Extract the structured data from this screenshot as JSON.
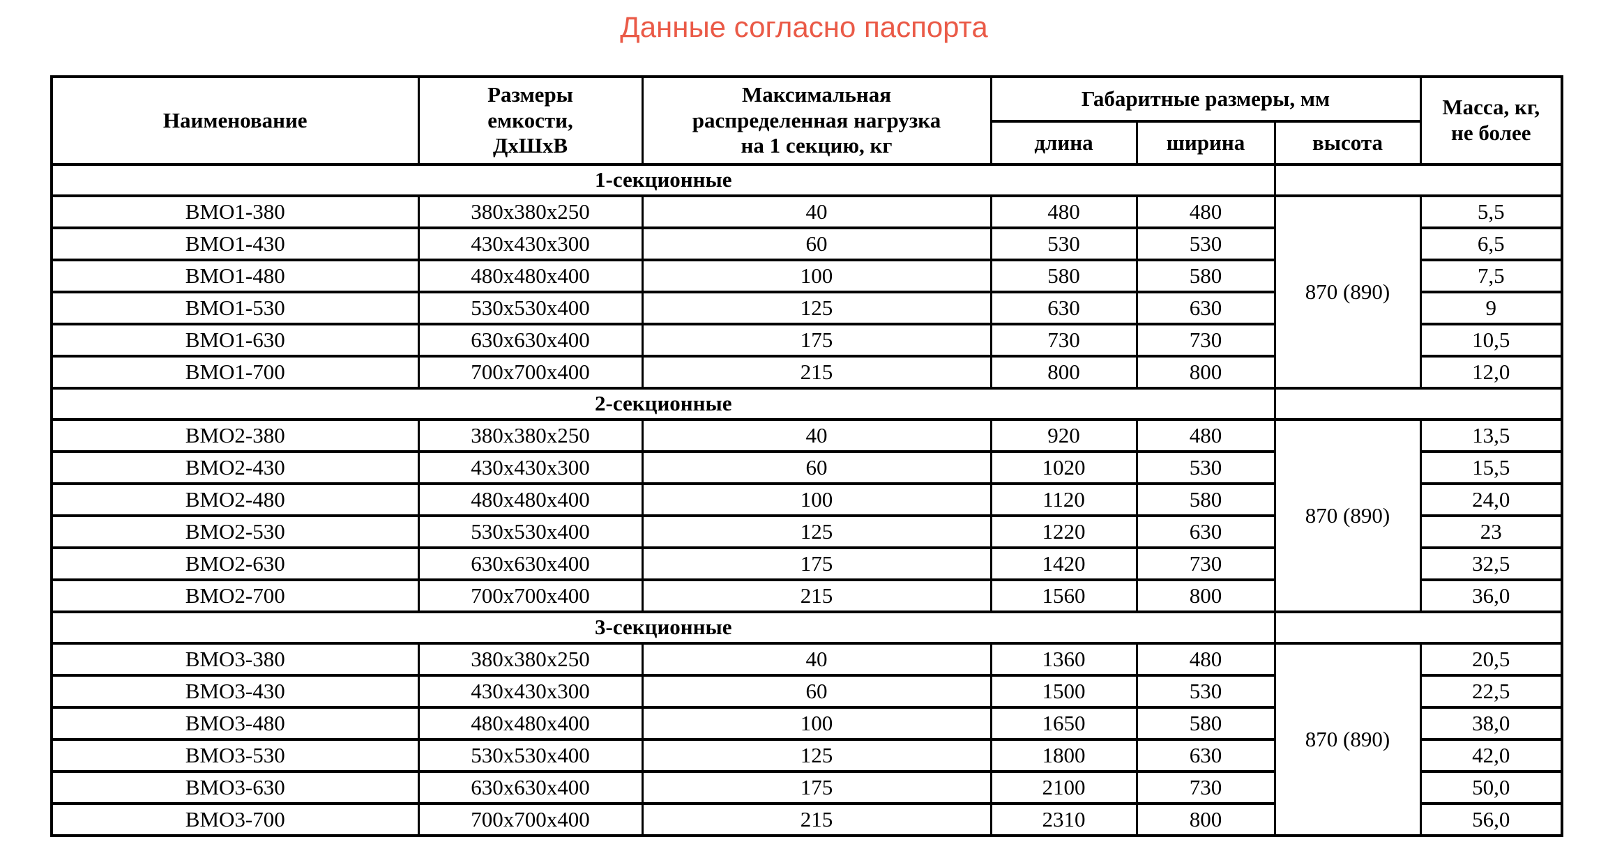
{
  "title": "Данные согласно паспорта",
  "accent_color": "#ea5a47",
  "table": {
    "header": {
      "name": "Наименование",
      "container_size": "Размеры\nемкости,\nДхШхВ",
      "max_load": "Максимальная\nраспределенная нагрузка\nна 1 секцию, кг",
      "overall_dims": "Габаритные размеры, мм",
      "length": "длина",
      "width": "ширина",
      "height": "высота",
      "mass": "Масса, кг,\nне более"
    },
    "sections": [
      {
        "label": "1-секционные",
        "height_value": "870 (890)",
        "rows": [
          {
            "name": "ВМО1-380",
            "size": "380х380х250",
            "load": "40",
            "length": "480",
            "width": "480",
            "mass": "5,5"
          },
          {
            "name": "ВМО1-430",
            "size": "430х430х300",
            "load": "60",
            "length": "530",
            "width": "530",
            "mass": "6,5"
          },
          {
            "name": "ВМО1-480",
            "size": "480х480х400",
            "load": "100",
            "length": "580",
            "width": "580",
            "mass": "7,5"
          },
          {
            "name": "ВМО1-530",
            "size": "530х530х400",
            "load": "125",
            "length": "630",
            "width": "630",
            "mass": "9"
          },
          {
            "name": "ВМО1-630",
            "size": "630х630х400",
            "load": "175",
            "length": "730",
            "width": "730",
            "mass": "10,5"
          },
          {
            "name": "ВМО1-700",
            "size": "700х700х400",
            "load": "215",
            "length": "800",
            "width": "800",
            "mass": "12,0"
          }
        ]
      },
      {
        "label": "2-секционные",
        "height_value": "870 (890)",
        "rows": [
          {
            "name": "ВМО2-380",
            "size": "380х380х250",
            "load": "40",
            "length": "920",
            "width": "480",
            "mass": "13,5"
          },
          {
            "name": "ВМО2-430",
            "size": "430х430х300",
            "load": "60",
            "length": "1020",
            "width": "530",
            "mass": "15,5"
          },
          {
            "name": "ВМО2-480",
            "size": "480х480х400",
            "load": "100",
            "length": "1120",
            "width": "580",
            "mass": "24,0"
          },
          {
            "name": "ВМО2-530",
            "size": "530х530х400",
            "load": "125",
            "length": "1220",
            "width": "630",
            "mass": "23"
          },
          {
            "name": "ВМО2-630",
            "size": "630х630х400",
            "load": "175",
            "length": "1420",
            "width": "730",
            "mass": "32,5"
          },
          {
            "name": "ВМО2-700",
            "size": "700х700х400",
            "load": "215",
            "length": "1560",
            "width": "800",
            "mass": "36,0"
          }
        ]
      },
      {
        "label": "3-секционные",
        "height_value": "870 (890)",
        "rows": [
          {
            "name": "ВМО3-380",
            "size": "380х380х250",
            "load": "40",
            "length": "1360",
            "width": "480",
            "mass": "20,5"
          },
          {
            "name": "ВМО3-430",
            "size": "430х430х300",
            "load": "60",
            "length": "1500",
            "width": "530",
            "mass": "22,5"
          },
          {
            "name": "ВМО3-480",
            "size": "480х480х400",
            "load": "100",
            "length": "1650",
            "width": "580",
            "mass": "38,0"
          },
          {
            "name": "ВМО3-530",
            "size": "530х530х400",
            "load": "125",
            "length": "1800",
            "width": "630",
            "mass": "42,0"
          },
          {
            "name": "ВМО3-630",
            "size": "630х630х400",
            "load": "175",
            "length": "2100",
            "width": "730",
            "mass": "50,0"
          },
          {
            "name": "ВМО3-700",
            "size": "700х700х400",
            "load": "215",
            "length": "2310",
            "width": "800",
            "mass": "56,0"
          }
        ]
      }
    ]
  }
}
